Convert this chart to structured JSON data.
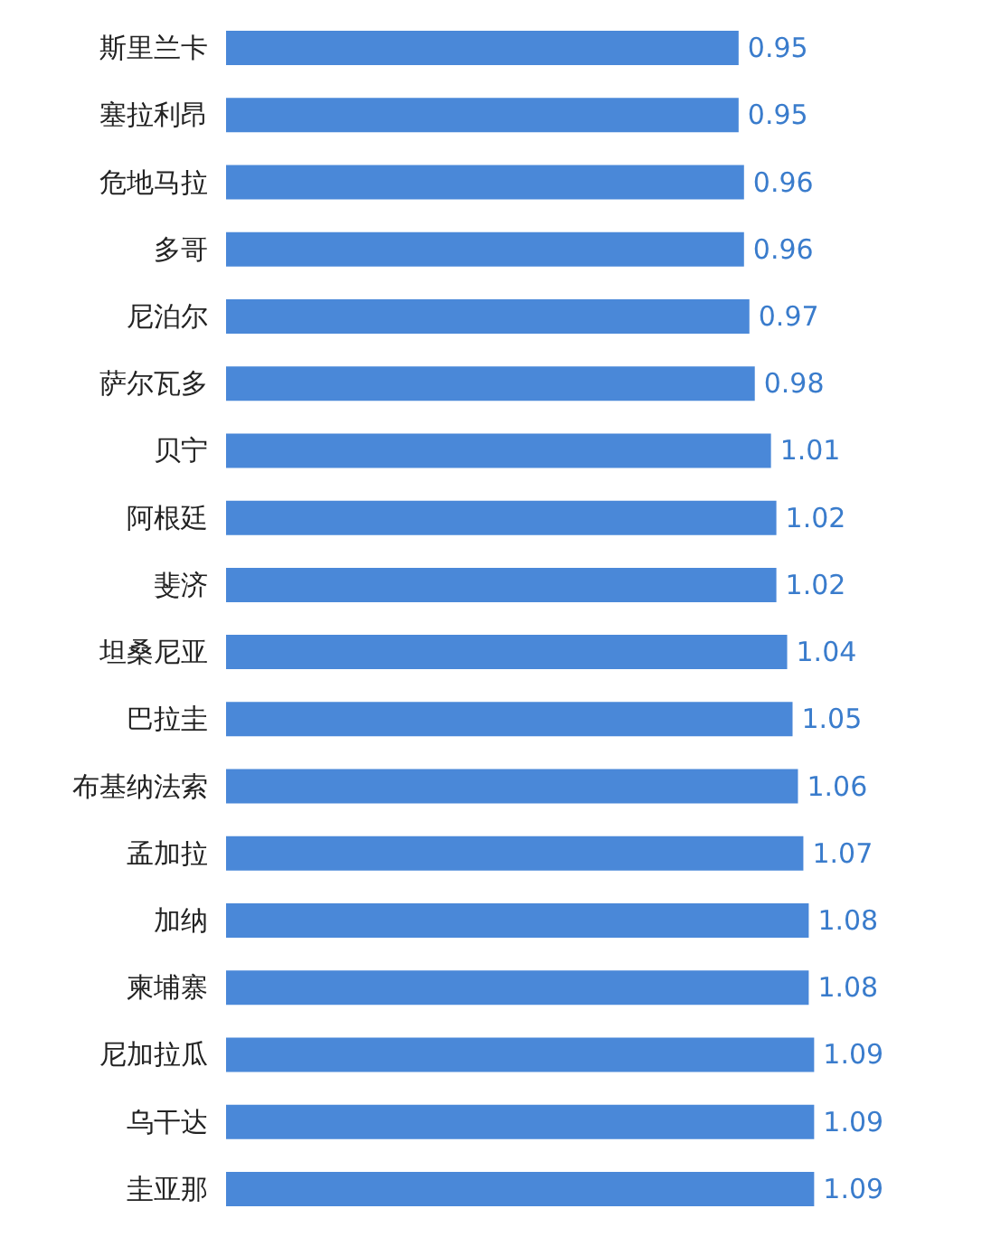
{
  "chart_data": {
    "type": "bar",
    "orientation": "horizontal",
    "categories": [
      "斯里兰卡",
      "塞拉利昂",
      "危地马拉",
      "多哥",
      "尼泊尔",
      "萨尔瓦多",
      "贝宁",
      "阿根廷",
      "斐济",
      "坦桑尼亚",
      "巴拉圭",
      "布基纳法索",
      "孟加拉",
      "加纳",
      "柬埔寨",
      "尼加拉瓜",
      "乌干达",
      "圭亚那"
    ],
    "values": [
      0.95,
      0.95,
      0.96,
      0.96,
      0.97,
      0.98,
      1.01,
      1.02,
      1.02,
      1.04,
      1.05,
      1.06,
      1.07,
      1.08,
      1.08,
      1.09,
      1.09,
      1.09
    ],
    "color": "#4a88d8",
    "data_labels": true
  }
}
